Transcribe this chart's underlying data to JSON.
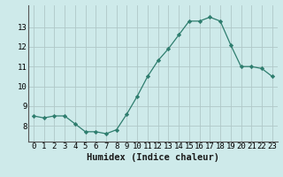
{
  "x": [
    0,
    1,
    2,
    3,
    4,
    5,
    6,
    7,
    8,
    9,
    10,
    11,
    12,
    13,
    14,
    15,
    16,
    17,
    18,
    19,
    20,
    21,
    22,
    23
  ],
  "y": [
    8.5,
    8.4,
    8.5,
    8.5,
    8.1,
    7.7,
    7.7,
    7.6,
    7.8,
    8.6,
    9.5,
    10.5,
    11.3,
    11.9,
    12.6,
    13.3,
    13.3,
    13.5,
    13.3,
    12.1,
    11.0,
    11.0,
    10.9,
    10.5
  ],
  "line_color": "#2e7d6e",
  "marker": "D",
  "marker_size": 2.2,
  "bg_color": "#ceeaea",
  "grid_color": "#b0c8c8",
  "xlabel": "Humidex (Indice chaleur)",
  "xlabel_fontsize": 7.5,
  "tick_fontsize": 6.5,
  "yticks": [
    8,
    9,
    10,
    11,
    12,
    13
  ],
  "xtick_labels": [
    "0",
    "1",
    "2",
    "3",
    "4",
    "5",
    "6",
    "7",
    "8",
    "9",
    "10",
    "11",
    "12",
    "13",
    "14",
    "15",
    "16",
    "17",
    "18",
    "19",
    "20",
    "21",
    "22",
    "23"
  ],
  "ylim": [
    7.2,
    14.1
  ],
  "xlim": [
    -0.5,
    23.5
  ]
}
